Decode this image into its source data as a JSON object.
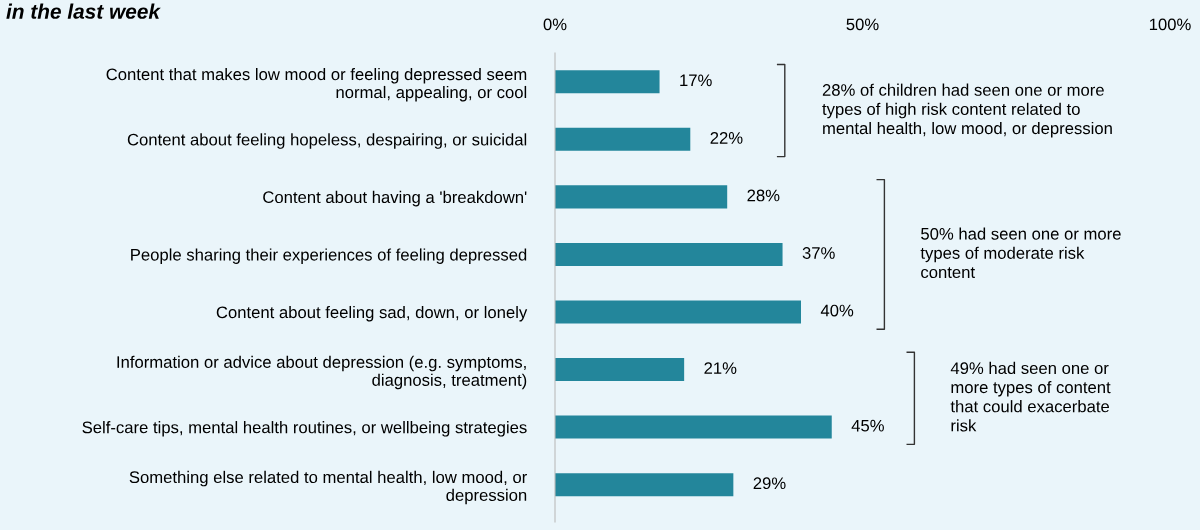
{
  "chart_data": {
    "type": "bar",
    "orientation": "horizontal",
    "title": "in the last week",
    "categories": [
      "Content that makes low mood or feeling depressed seem\nnormal, appealing, or cool",
      "Content about feeling hopeless, despairing, or suicidal",
      "Content about having a 'breakdown'",
      "People sharing their experiences of feeling depressed",
      "Content about feeling sad, down, or lonely",
      "Information or advice about depression (e.g. symptoms,\ndiagnosis, treatment)",
      "Self-care tips, mental health routines, or wellbeing strategies",
      "Something else related to mental health, low mood, or\ndepression"
    ],
    "values": [
      17,
      22,
      28,
      37,
      40,
      21,
      45,
      29
    ],
    "value_labels": [
      "17%",
      "22%",
      "28%",
      "37%",
      "40%",
      "21%",
      "45%",
      "29%"
    ],
    "color": "#23869b",
    "xlim": [
      0,
      100
    ],
    "xticks": [
      {
        "value": 0,
        "label": "0%"
      },
      {
        "value": 50,
        "label": "50%"
      },
      {
        "value": 100,
        "label": "100%"
      }
    ],
    "annotations": [
      "28% of children had seen one or more\ntypes of high risk content related to\nmental health, low mood, or depression",
      "50% had seen one or more\ntypes of moderate risk\ncontent",
      "49% had seen one or\nmore types of content\nthat could exacerbate\nrisk"
    ],
    "grid": false,
    "legend": false
  }
}
